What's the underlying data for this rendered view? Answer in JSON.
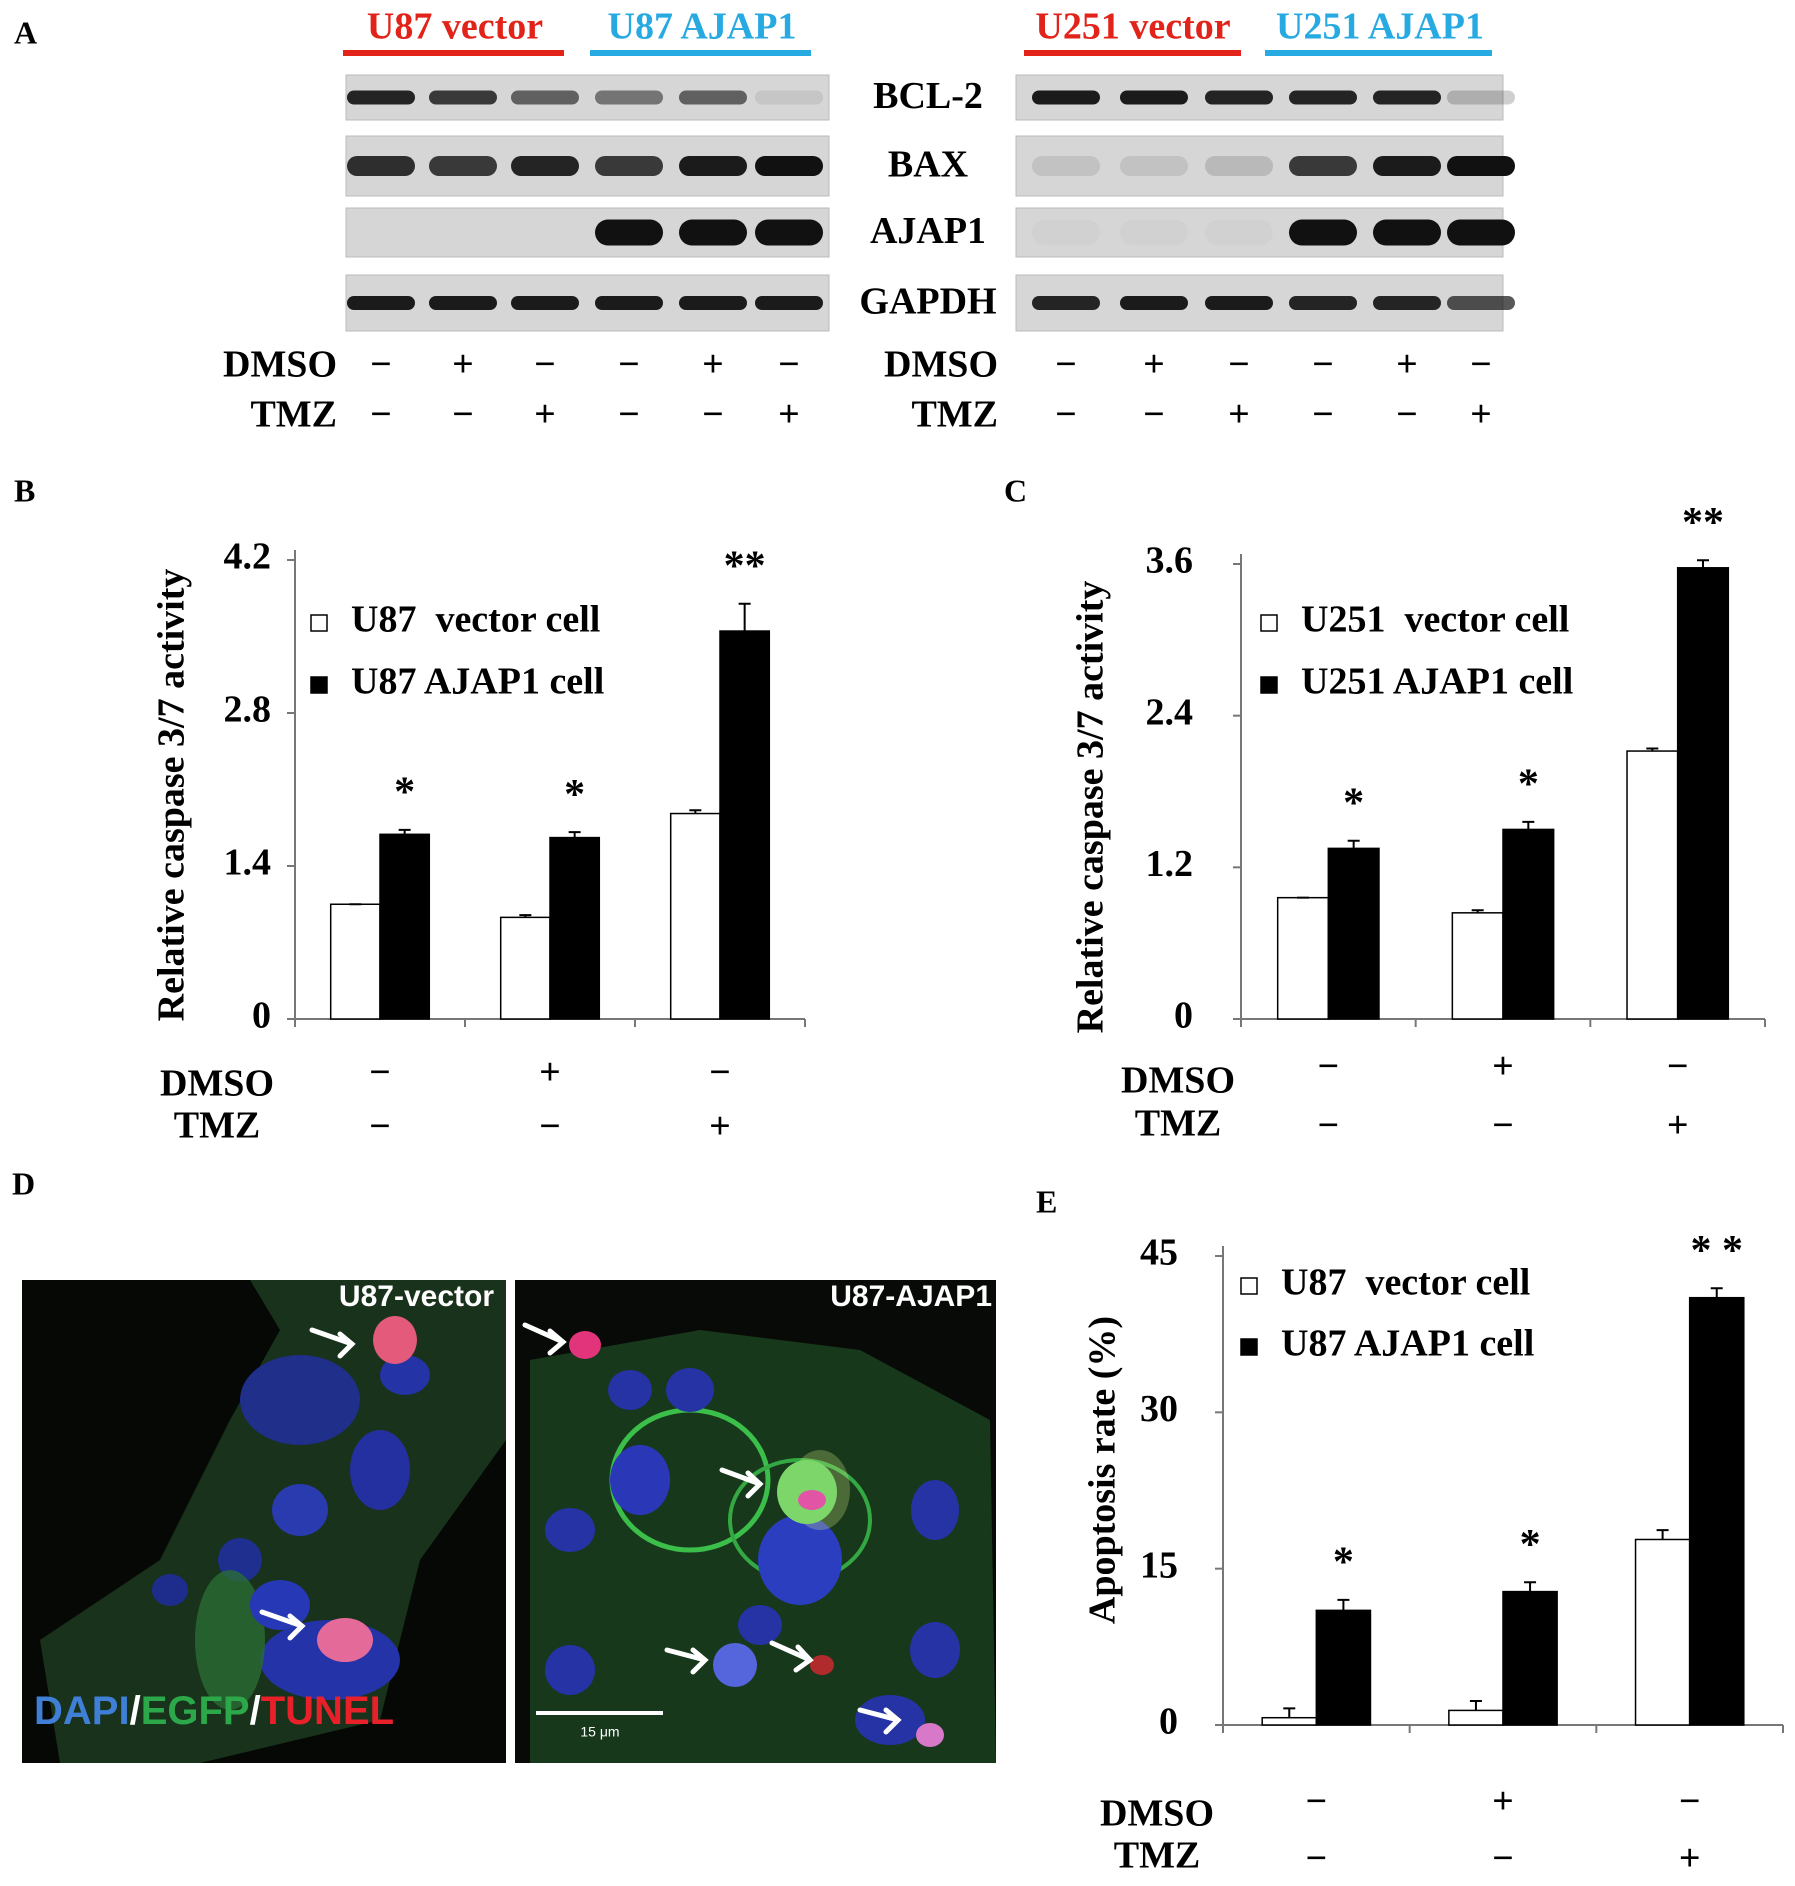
{
  "panel_labels": [
    "A",
    "B",
    "C",
    "D",
    "E"
  ],
  "blots": [
    {
      "groups": [
        {
          "label": "U87 vector",
          "color": "#e2231a"
        },
        {
          "label": "U87 AJAP1",
          "color": "#27a9e1"
        }
      ],
      "treatments": [
        {
          "label": "DMSO",
          "signs": [
            "−",
            "+",
            "−",
            "−",
            "+",
            "−"
          ]
        },
        {
          "label": "TMZ",
          "signs": [
            "−",
            "−",
            "+",
            "−",
            "−",
            "+"
          ]
        }
      ]
    },
    {
      "groups": [
        {
          "label": "U251 vector",
          "color": "#e2231a"
        },
        {
          "label": "U251 AJAP1",
          "color": "#27a9e1"
        }
      ],
      "treatments": [
        {
          "label": "DMSO",
          "signs": [
            "−",
            "+",
            "−",
            "−",
            "+",
            "−"
          ]
        },
        {
          "label": "TMZ",
          "signs": [
            "−",
            "−",
            "+",
            "−",
            "−",
            "+"
          ]
        }
      ]
    }
  ],
  "blot_rows": [
    "BCL-2",
    "BAX",
    "AJAP1",
    "GAPDH"
  ],
  "micrographs": {
    "panels": [
      "U87-vector",
      "U87-AJAP1"
    ],
    "stain": [
      {
        "text": "DAPI",
        "color": "#3f7fd6"
      },
      {
        "text": "/",
        "color": "#ffffff"
      },
      {
        "text": "EGFP",
        "color": "#2ca84a"
      },
      {
        "text": "/",
        "color": "#ffffff"
      },
      {
        "text": "TUNEL",
        "color": "#e8202a"
      }
    ],
    "scale_bar": "15 μm"
  },
  "chart_data": [
    {
      "type": "bar",
      "ylabel": "Relative caspase 3/7  activity",
      "ylim": [
        0,
        4.2
      ],
      "yticks": [
        0,
        1.4,
        2.8,
        4.2
      ],
      "legend": "upper left",
      "series": [
        {
          "name": "U87  vector cell",
          "color": "#ffffff",
          "values": [
            1.05,
            0.93,
            1.88
          ],
          "errors": [
            0.0,
            0.02,
            0.03
          ]
        },
        {
          "name": "U87 AJAP1 cell",
          "color": "#000000",
          "values": [
            1.69,
            1.66,
            3.55
          ],
          "errors": [
            0.04,
            0.05,
            0.25
          ]
        }
      ],
      "annotations": [
        "*",
        "*",
        "**"
      ],
      "conditions": [
        {
          "label": "DMSO",
          "signs": [
            "−",
            "+",
            "−"
          ]
        },
        {
          "label": "TMZ",
          "signs": [
            "−",
            "−",
            "+"
          ]
        }
      ]
    },
    {
      "type": "bar",
      "ylabel": "Relative caspase 3/7  activity",
      "ylim": [
        0,
        3.6
      ],
      "yticks": [
        0,
        1.2,
        2.4,
        3.6
      ],
      "legend": "upper left",
      "series": [
        {
          "name": "U251  vector cell",
          "color": "#ffffff",
          "values": [
            0.96,
            0.84,
            2.12
          ],
          "errors": [
            0.0,
            0.02,
            0.02
          ]
        },
        {
          "name": "U251 AJAP1 cell",
          "color": "#000000",
          "values": [
            1.35,
            1.5,
            3.57
          ],
          "errors": [
            0.06,
            0.06,
            0.06
          ]
        }
      ],
      "annotations": [
        "*",
        "*",
        "**"
      ],
      "conditions": [
        {
          "label": "DMSO",
          "signs": [
            "−",
            "+",
            "−"
          ]
        },
        {
          "label": "TMZ",
          "signs": [
            "−",
            "−",
            "+"
          ]
        }
      ]
    },
    {
      "type": "bar",
      "ylabel": "Apoptosis rate (%)",
      "ylim": [
        0,
        45
      ],
      "yticks": [
        0,
        15,
        30,
        45
      ],
      "legend": "upper left",
      "series": [
        {
          "name": "U87  vector cell",
          "color": "#ffffff",
          "values": [
            0.7,
            1.4,
            17.8
          ],
          "errors": [
            0.9,
            0.9,
            0.9
          ]
        },
        {
          "name": "U87 AJAP1 cell",
          "color": "#000000",
          "values": [
            11,
            12.8,
            41
          ],
          "errors": [
            1.0,
            0.9,
            0.9
          ]
        }
      ],
      "annotations": [
        "*",
        "*",
        "* *"
      ],
      "conditions": [
        {
          "label": "DMSO",
          "signs": [
            "−",
            "+",
            "−"
          ]
        },
        {
          "label": "TMZ",
          "signs": [
            "−",
            "−",
            "+"
          ]
        }
      ]
    }
  ]
}
